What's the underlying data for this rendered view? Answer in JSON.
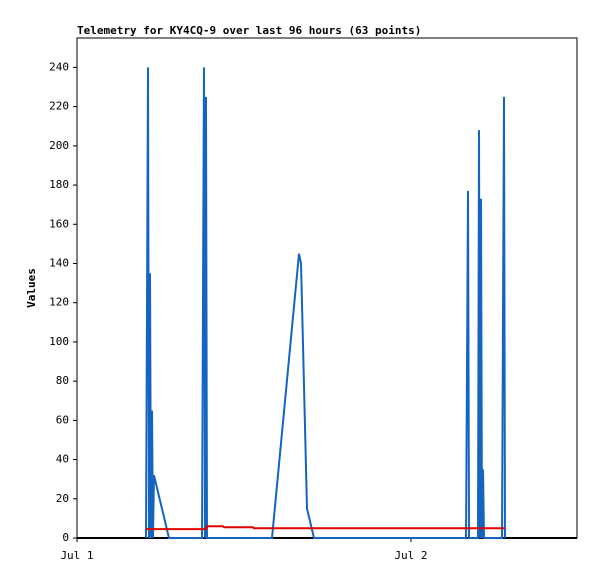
{
  "chart_data": {
    "type": "line",
    "title": "Telemetry for KY4CQ-9 over last 96 hours (63 points)",
    "y_label": "Values",
    "xlim": [
      0,
      1.497
    ],
    "xticks": [
      {
        "value": 0,
        "label": "Jul 1"
      },
      {
        "value": 1,
        "label": "Jul 2"
      }
    ],
    "ylim": [
      0,
      255
    ],
    "yticks": [
      0,
      20,
      40,
      60,
      80,
      100,
      120,
      140,
      160,
      180,
      200,
      220,
      240
    ],
    "series": [
      {
        "color": "#1565c0",
        "x": [
          0.2066,
          0.2096,
          0.2126,
          0.2156,
          0.2186,
          0.2216,
          0.2246,
          0.2275,
          0.2305,
          0.2754,
          0.3743,
          0.3772,
          0.3802,
          0.3832,
          0.3862,
          0.3892,
          0.5838,
          0.6647,
          0.6707,
          0.6886,
          0.7096,
          1.1647,
          1.1677,
          1.1707,
          1.1737,
          1.2006,
          1.2036,
          1.2066,
          1.2096,
          1.2126,
          1.2156,
          1.2186,
          1.2725,
          1.2754,
          1.2784,
          1.2814
        ],
        "values": [
          0,
          120,
          240,
          0,
          135,
          0,
          65,
          0,
          32,
          0,
          0,
          120,
          240,
          0,
          225,
          0,
          0,
          145,
          140,
          15,
          0,
          0,
          88,
          177,
          0,
          0,
          208,
          0,
          173,
          0,
          35,
          0,
          0,
          112,
          225,
          0
        ]
      },
      {
        "color": "#e00000",
        "x": [
          0.2066,
          0.3862,
          0.3892,
          0.4371,
          0.4401,
          0.5269,
          0.5299,
          1.2814
        ],
        "values": [
          4.5,
          4.5,
          6,
          6,
          5.5,
          5.5,
          5,
          5
        ]
      }
    ]
  }
}
